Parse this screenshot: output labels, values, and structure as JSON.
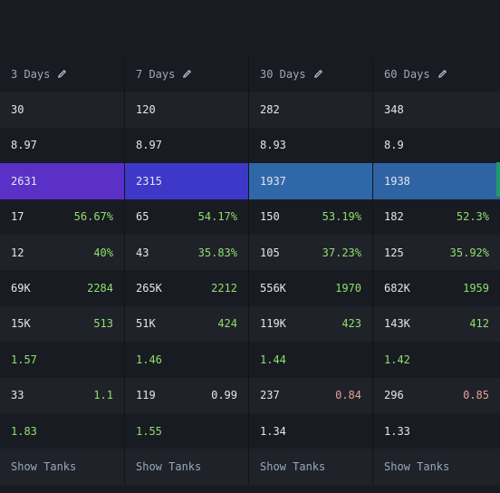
{
  "columns": [
    {
      "header": "3 Days",
      "r1": "30",
      "r2": "8.97",
      "r3": "2631",
      "r4": {
        "val": "17",
        "sub": "56.67%"
      },
      "r5": {
        "val": "12",
        "sub": "40%"
      },
      "r6": {
        "val": "69K",
        "sub": "2284"
      },
      "r7": {
        "val": "15K",
        "sub": "513"
      },
      "r8": "1.57",
      "r9": {
        "val": "33",
        "sub": "1.1"
      },
      "r10": "1.83",
      "link": "Show Tanks"
    },
    {
      "header": "7 Days",
      "r1": "120",
      "r2": "8.97",
      "r3": "2315",
      "r4": {
        "val": "65",
        "sub": "54.17%"
      },
      "r5": {
        "val": "43",
        "sub": "35.83%"
      },
      "r6": {
        "val": "265K",
        "sub": "2212"
      },
      "r7": {
        "val": "51K",
        "sub": "424"
      },
      "r8": "1.46",
      "r9": {
        "val": "119",
        "sub": "0.99"
      },
      "r10": "1.55",
      "link": "Show Tanks"
    },
    {
      "header": "30 Days",
      "r1": "282",
      "r2": "8.93",
      "r3": "1937",
      "r4": {
        "val": "150",
        "sub": "53.19%"
      },
      "r5": {
        "val": "105",
        "sub": "37.23%"
      },
      "r6": {
        "val": "556K",
        "sub": "1970"
      },
      "r7": {
        "val": "119K",
        "sub": "423"
      },
      "r8": "1.44",
      "r9": {
        "val": "237",
        "sub": "0.84"
      },
      "r10": "1.34",
      "link": "Show Tanks"
    },
    {
      "header": "60 Days",
      "r1": "348",
      "r2": "8.9",
      "r3": "1938",
      "r4": {
        "val": "182",
        "sub": "52.3%"
      },
      "r5": {
        "val": "125",
        "sub": "35.92%"
      },
      "r6": {
        "val": "682K",
        "sub": "1959"
      },
      "r7": {
        "val": "143K",
        "sub": "412"
      },
      "r8": "1.42",
      "r9": {
        "val": "296",
        "sub": "0.85"
      },
      "r10": "1.33",
      "link": "Show Tanks"
    }
  ],
  "colors": {
    "highlight_3d": "#5a30c6",
    "highlight_7d": "#3d38c8",
    "highlight_30d": "#2f68a8",
    "highlight_60d": "#2e64a3",
    "positive": "#8fe06b",
    "negative": "#e6a098"
  },
  "icons": {
    "edit": "pencil-icon"
  }
}
